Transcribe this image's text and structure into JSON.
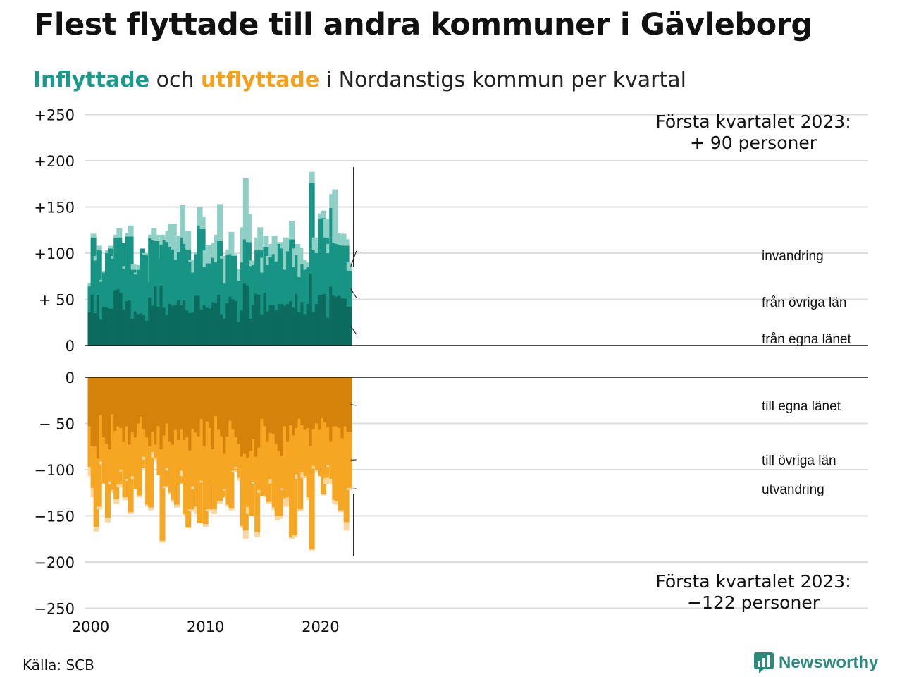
{
  "title": "Flest flyttade till andra kommuner i Gävleborg",
  "subtitle": {
    "in_label": "Inflyttade",
    "mid1": " och ",
    "out_label": "utflyttade",
    "rest": " i Nordanstigs kommun per kvartal"
  },
  "source": "Källa: SCB",
  "brand": "Newsworthy",
  "colors": {
    "in_own": "#0b6b5e",
    "in_other": "#189485",
    "in_immigration": "#8fd0c6",
    "out_own": "#d4820a",
    "out_other": "#f5a623",
    "out_emigration": "#f8d7a0",
    "grid": "#dddddd"
  },
  "chart_data": {
    "type": "bar",
    "stacked": true,
    "title": "Inflyttade och utflyttade i Nordanstigs kommun per kvartal",
    "x_start": "2000Q1",
    "x_end": "2023Q1",
    "x_ticks": [
      "2000",
      "2010",
      "2020"
    ],
    "y_ticks": [
      "+250",
      "+200",
      "+150",
      "+100",
      "+ 50",
      "0",
      "0",
      "− 50",
      "−100",
      "−150",
      "−200",
      "−250"
    ],
    "ylim_in": [
      0,
      250
    ],
    "ylim_out": [
      -250,
      0
    ],
    "grid": true,
    "legend_in": [
      "invandring",
      "från övriga län",
      "från egna länet"
    ],
    "legend_out": [
      "till egna länet",
      "till övriga län",
      "utvandring"
    ],
    "annotation_in": [
      "Första kvartalet 2023:",
      "+ 90 personer"
    ],
    "annotation_out": [
      "Första kvartalet 2023:",
      "−122 personer"
    ],
    "inflyttade": {
      "fran_egna_lanet": [
        36,
        55,
        35,
        55,
        28,
        42,
        41,
        40,
        40,
        60,
        61,
        57,
        39,
        48,
        49,
        29,
        37,
        34,
        35,
        33,
        27,
        52,
        43,
        64,
        42,
        65,
        41,
        33,
        45,
        43,
        44,
        49,
        44,
        49,
        38,
        35,
        36,
        54,
        54,
        39,
        44,
        41,
        40,
        47,
        46,
        55,
        34,
        29,
        46,
        53,
        50,
        48,
        26,
        38,
        67,
        65,
        29,
        44,
        56,
        55,
        34,
        57,
        37,
        44,
        44,
        38,
        45,
        45,
        43,
        45,
        48,
        41,
        56,
        36,
        47,
        34,
        45,
        78,
        36,
        45,
        55,
        55,
        56,
        30,
        64,
        54,
        53,
        54,
        51,
        51,
        42
      ],
      "fran_ovriga_lan": [
        28,
        62,
        57,
        48,
        41,
        37,
        59,
        65,
        54,
        57,
        56,
        54,
        44,
        70,
        69,
        53,
        40,
        48,
        70,
        65,
        41,
        64,
        71,
        49,
        53,
        44,
        73,
        79,
        62,
        61,
        49,
        52,
        73,
        61,
        66,
        55,
        43,
        45,
        76,
        87,
        41,
        48,
        49,
        48,
        44,
        58,
        60,
        38,
        52,
        46,
        47,
        35,
        44,
        52,
        48,
        47,
        57,
        43,
        48,
        48,
        45,
        50,
        50,
        52,
        55,
        53,
        65,
        60,
        39,
        57,
        67,
        44,
        42,
        38,
        41,
        48,
        40,
        98,
        67,
        55,
        82,
        83,
        61,
        70,
        85,
        57,
        57,
        55,
        57,
        57,
        39
      ],
      "invandring": [
        4,
        4,
        5,
        5,
        2,
        2,
        3,
        3,
        3,
        3,
        10,
        0,
        3,
        4,
        12,
        6,
        2,
        5,
        0,
        2,
        0,
        4,
        13,
        7,
        0,
        11,
        0,
        12,
        25,
        28,
        20,
        18,
        35,
        10,
        20,
        3,
        12,
        2,
        20,
        13,
        18,
        20,
        3,
        16,
        30,
        40,
        3,
        27,
        6,
        24,
        2,
        0,
        13,
        38,
        66,
        30,
        6,
        4,
        13,
        25,
        16,
        12,
        10,
        14,
        20,
        20,
        2,
        6,
        35,
        7,
        20,
        20,
        12,
        32,
        5,
        8,
        2,
        12,
        14,
        6,
        6,
        8,
        20,
        10,
        15,
        58,
        12,
        7,
        13,
        7,
        9
      ]
    },
    "utflyttade": {
      "till_egna_lanet": [
        53,
        75,
        75,
        88,
        41,
        65,
        72,
        78,
        40,
        58,
        53,
        55,
        70,
        53,
        73,
        59,
        65,
        50,
        43,
        56,
        65,
        75,
        59,
        73,
        53,
        78,
        63,
        50,
        70,
        73,
        57,
        68,
        56,
        68,
        65,
        79,
        56,
        60,
        64,
        45,
        75,
        48,
        55,
        78,
        42,
        57,
        64,
        83,
        64,
        47,
        56,
        65,
        72,
        86,
        83,
        87,
        80,
        67,
        86,
        76,
        45,
        53,
        70,
        60,
        61,
        72,
        80,
        85,
        53,
        70,
        52,
        63,
        55,
        45,
        52,
        57,
        55,
        74,
        56,
        50,
        57,
        44,
        49,
        54,
        70,
        53,
        53,
        55,
        66,
        53,
        59
      ],
      "till_ovriga_lan": [
        44,
        45,
        87,
        52,
        50,
        50,
        80,
        35,
        82,
        74,
        63,
        45,
        60,
        57,
        73,
        48,
        56,
        78,
        55,
        30,
        73,
        66,
        22,
        15,
        53,
        99,
        55,
        48,
        55,
        60,
        81,
        47,
        45,
        80,
        98,
        64,
        62,
        80,
        94,
        67,
        84,
        95,
        58,
        65,
        92,
        77,
        66,
        38,
        74,
        95,
        45,
        32,
        37,
        75,
        83,
        53,
        70,
        46,
        82,
        46,
        84,
        75,
        65,
        50,
        80,
        78,
        70,
        35,
        78,
        60,
        121,
        108,
        50,
        98,
        51,
        50,
        75,
        112,
        40,
        50,
        50,
        82,
        60,
        41,
        40,
        80,
        81,
        89,
        76,
        104,
        61
      ],
      "utvandring": [
        10,
        10,
        5,
        3,
        3,
        0,
        5,
        3,
        3,
        5,
        3,
        2,
        3,
        2,
        2,
        3,
        0,
        2,
        0,
        3,
        2,
        3,
        6,
        2,
        0,
        2,
        2,
        3,
        2,
        2,
        3,
        0,
        6,
        2,
        0,
        2,
        3,
        8,
        0,
        2,
        3,
        2,
        0,
        5,
        0,
        3,
        0,
        2,
        2,
        2,
        2,
        2,
        3,
        2,
        9,
        8,
        0,
        3,
        5,
        3,
        0,
        2,
        2,
        5,
        3,
        5,
        3,
        2,
        9,
        3,
        2,
        2,
        5,
        2,
        6,
        2,
        3,
        2,
        3,
        2,
        0,
        2,
        7,
        2,
        5,
        4,
        4,
        2,
        0,
        9,
        2
      ]
    }
  }
}
